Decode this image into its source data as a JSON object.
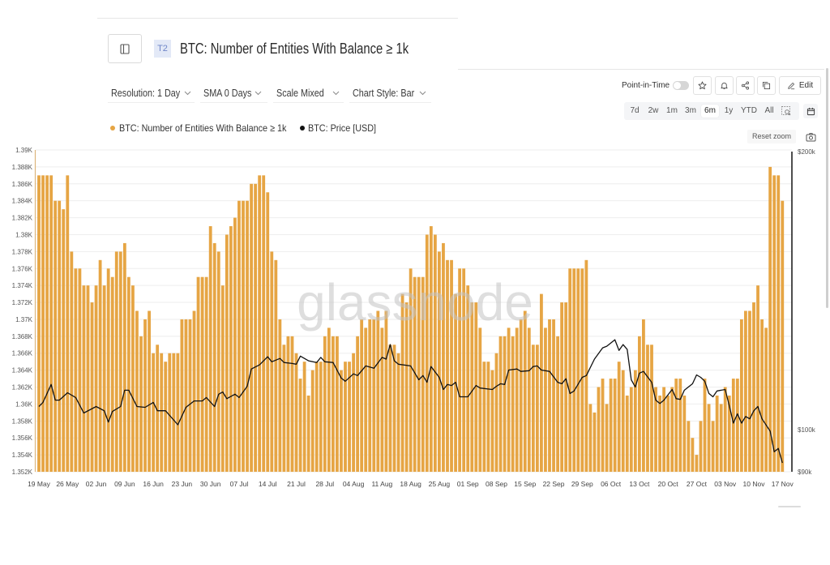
{
  "header": {
    "sidebar_toggle_icon": "panel-left-icon",
    "tier_badge": "T2",
    "title": "BTC: Number of Entities With Balance ≥ 1k"
  },
  "filters": [
    {
      "label": "Resolution: 1 Day",
      "icon": "chevron-down-icon"
    },
    {
      "label": "SMA 0 Days",
      "icon": "chevron-down-icon"
    },
    {
      "label": "Scale Mixed",
      "icon": "chevron-down-icon"
    },
    {
      "label": "Chart Style: Bar",
      "icon": "chevron-down-icon"
    }
  ],
  "legend": [
    {
      "label": "BTC: Number of Entities With Balance ≥ 1k",
      "color": "#E6A544"
    },
    {
      "label": "BTC: Price [USD]",
      "color": "#111111"
    }
  ],
  "toolbar": {
    "point_in_time_label": "Point-in-Time",
    "point_in_time_enabled": false,
    "icons": [
      "star-icon",
      "bell-icon",
      "share-icon",
      "copy-icon"
    ],
    "edit_label": "Edit",
    "edit_icon": "pencil-icon"
  },
  "time_ranges": {
    "options": [
      "7d",
      "2w",
      "1m",
      "3m",
      "6m",
      "1y",
      "YTD",
      "All"
    ],
    "selected": "6m",
    "extra_icons": [
      "zoom-select-icon",
      "calendar-icon"
    ]
  },
  "reset_zoom_label": "Reset zoom",
  "screenshot_icon": "camera-icon",
  "watermark": "glassnode",
  "chart_data": {
    "type": "bar",
    "title": "BTC: Number of Entities With Balance ≥ 1k",
    "xlabel": "",
    "ylabel": "",
    "x_start": "19 May",
    "x_interval": "1 Day",
    "x_ticks": [
      {
        "day": 0,
        "label": "19 May"
      },
      {
        "day": 7,
        "label": "26 May"
      },
      {
        "day": 14,
        "label": "02 Jun"
      },
      {
        "day": 21,
        "label": "09 Jun"
      },
      {
        "day": 28,
        "label": "16 Jun"
      },
      {
        "day": 35,
        "label": "23 Jun"
      },
      {
        "day": 42,
        "label": "30 Jun"
      },
      {
        "day": 49,
        "label": "07 Jul"
      },
      {
        "day": 56,
        "label": "14 Jul"
      },
      {
        "day": 63,
        "label": "21 Jul"
      },
      {
        "day": 70,
        "label": "28 Jul"
      },
      {
        "day": 77,
        "label": "04 Aug"
      },
      {
        "day": 84,
        "label": "11 Aug"
      },
      {
        "day": 91,
        "label": "18 Aug"
      },
      {
        "day": 98,
        "label": "25 Aug"
      },
      {
        "day": 105,
        "label": "01 Sep"
      },
      {
        "day": 112,
        "label": "08 Sep"
      },
      {
        "day": 119,
        "label": "15 Sep"
      },
      {
        "day": 126,
        "label": "22 Sep"
      },
      {
        "day": 133,
        "label": "29 Sep"
      },
      {
        "day": 140,
        "label": "06 Oct"
      },
      {
        "day": 147,
        "label": "13 Oct"
      },
      {
        "day": 154,
        "label": "20 Oct"
      },
      {
        "day": 161,
        "label": "27 Oct"
      },
      {
        "day": 168,
        "label": "03 Nov"
      },
      {
        "day": 175,
        "label": "10 Nov"
      },
      {
        "day": 182,
        "label": "17 Nov"
      }
    ],
    "ylim": [
      1352,
      1390
    ],
    "y_ticks": [
      {
        "value": 1390,
        "label": "1.39K"
      },
      {
        "value": 1388,
        "label": "1.388K"
      },
      {
        "value": 1386,
        "label": "1.386K"
      },
      {
        "value": 1384,
        "label": "1.384K"
      },
      {
        "value": 1382,
        "label": "1.382K"
      },
      {
        "value": 1380,
        "label": "1.38K"
      },
      {
        "value": 1378,
        "label": "1.378K"
      },
      {
        "value": 1376,
        "label": "1.376K"
      },
      {
        "value": 1374,
        "label": "1.374K"
      },
      {
        "value": 1372,
        "label": "1.372K"
      },
      {
        "value": 1370,
        "label": "1.37K"
      },
      {
        "value": 1368,
        "label": "1.368K"
      },
      {
        "value": 1366,
        "label": "1.366K"
      },
      {
        "value": 1364,
        "label": "1.364K"
      },
      {
        "value": 1362,
        "label": "1.362K"
      },
      {
        "value": 1360,
        "label": "1.36K"
      },
      {
        "value": 1358,
        "label": "1.358K"
      },
      {
        "value": 1356,
        "label": "1.356K"
      },
      {
        "value": 1354,
        "label": "1.354K"
      },
      {
        "value": 1352,
        "label": "1.352K"
      }
    ],
    "y2lim": [
      90000,
      200000
    ],
    "y2scale": "log",
    "y2_ticks": [
      {
        "value": 200000,
        "label": "$200k"
      },
      {
        "value": 100000,
        "label": "$100k"
      },
      {
        "value": 90000,
        "label": "$90k"
      }
    ],
    "grid": true,
    "legend_position": "top-left",
    "series": [
      {
        "name": "BTC: Number of Entities With Balance ≥ 1k",
        "type": "bar",
        "axis": "left",
        "color": "#E6A544",
        "values": [
          1387,
          1387,
          1387,
          1387,
          1384,
          1384,
          1383,
          1387,
          1378,
          1376,
          1376,
          1374,
          1374,
          1372,
          1374,
          1377,
          1374,
          1376,
          1375,
          1378,
          1378,
          1379,
          1375,
          1374,
          1371,
          1368,
          1370,
          1371,
          1366,
          1367,
          1366,
          1365,
          1366,
          1366,
          1366,
          1370,
          1370,
          1370,
          1371,
          1375,
          1375,
          1375,
          1381,
          1379,
          1378,
          1374,
          1380,
          1381,
          1382,
          1384,
          1384,
          1384,
          1386,
          1386,
          1387,
          1387,
          1385,
          1378,
          1377,
          1370,
          1367,
          1368,
          1368,
          1366,
          1363,
          1365,
          1361,
          1364,
          1365,
          1365,
          1368,
          1369,
          1368,
          1368,
          1364,
          1365,
          1365,
          1366,
          1368,
          1370,
          1369,
          1370,
          1370,
          1371,
          1369,
          1371,
          1367,
          1367,
          1366,
          1373,
          1372,
          1376,
          1375,
          1375,
          1375,
          1380,
          1381,
          1380,
          1378,
          1379,
          1377,
          1377,
          1373,
          1376,
          1376,
          1374,
          1372,
          1372,
          1369,
          1365,
          1365,
          1364,
          1366,
          1368,
          1368,
          1369,
          1368,
          1369,
          1370,
          1371,
          1369,
          1367,
          1367,
          1373,
          1369,
          1370,
          1370,
          1368,
          1372,
          1372,
          1376,
          1376,
          1376,
          1376,
          1377,
          1360,
          1359,
          1362,
          1363,
          1360,
          1363,
          1363,
          1365,
          1364,
          1361,
          1362,
          1364,
          1368,
          1370,
          1367,
          1367,
          1362,
          1361,
          1362,
          1361,
          1362,
          1363,
          1363,
          1361,
          1358,
          1356,
          1354,
          1358,
          1363,
          1360,
          1358,
          1361,
          1360,
          1362,
          1361,
          1363,
          1363,
          1370,
          1371,
          1371,
          1372,
          1374,
          1370,
          1369,
          1388,
          1387,
          1387,
          1384
        ]
      },
      {
        "name": "BTC: Price [USD]",
        "type": "line",
        "axis": "right",
        "color": "#111111",
        "points": [
          [
            0,
            105900
          ],
          [
            1,
            107000
          ],
          [
            3,
            111900
          ],
          [
            4,
            107600
          ],
          [
            5,
            107600
          ],
          [
            7,
            109600
          ],
          [
            9,
            108300
          ],
          [
            11,
            104200
          ],
          [
            14,
            105900
          ],
          [
            16,
            104800
          ],
          [
            17,
            101900
          ],
          [
            18,
            104600
          ],
          [
            20,
            105900
          ],
          [
            21,
            110300
          ],
          [
            22,
            110300
          ],
          [
            24,
            105900
          ],
          [
            26,
            105700
          ],
          [
            28,
            107000
          ],
          [
            29,
            104800
          ],
          [
            31,
            104800
          ],
          [
            34,
            101200
          ],
          [
            36,
            105700
          ],
          [
            38,
            107400
          ],
          [
            40,
            107400
          ],
          [
            41,
            108300
          ],
          [
            43,
            105900
          ],
          [
            44,
            109200
          ],
          [
            45,
            109800
          ],
          [
            46,
            108000
          ],
          [
            48,
            109200
          ],
          [
            49,
            108300
          ],
          [
            51,
            111400
          ],
          [
            52,
            116300
          ],
          [
            54,
            117500
          ],
          [
            56,
            119900
          ],
          [
            57,
            118400
          ],
          [
            59,
            119400
          ],
          [
            60,
            118200
          ],
          [
            62,
            117900
          ],
          [
            63,
            117700
          ],
          [
            64,
            120100
          ],
          [
            66,
            118700
          ],
          [
            68,
            118200
          ],
          [
            69,
            119700
          ],
          [
            70,
            118400
          ],
          [
            72,
            118200
          ],
          [
            74,
            113700
          ],
          [
            75,
            112800
          ],
          [
            77,
            114900
          ],
          [
            78,
            114400
          ],
          [
            80,
            117200
          ],
          [
            82,
            116500
          ],
          [
            84,
            119700
          ],
          [
            85,
            119200
          ],
          [
            86,
            123600
          ],
          [
            87,
            118700
          ],
          [
            88,
            117700
          ],
          [
            91,
            117200
          ],
          [
            93,
            113200
          ],
          [
            94,
            114400
          ],
          [
            95,
            112500
          ],
          [
            96,
            117000
          ],
          [
            98,
            113900
          ],
          [
            99,
            110500
          ],
          [
            100,
            111900
          ],
          [
            101,
            111600
          ],
          [
            102,
            112500
          ],
          [
            103,
            108500
          ],
          [
            105,
            108500
          ],
          [
            107,
            111600
          ],
          [
            108,
            110900
          ],
          [
            111,
            110500
          ],
          [
            112,
            111400
          ],
          [
            113,
            112100
          ],
          [
            114,
            111900
          ],
          [
            115,
            116000
          ],
          [
            117,
            116300
          ],
          [
            118,
            115600
          ],
          [
            120,
            115800
          ],
          [
            121,
            117000
          ],
          [
            122,
            117200
          ],
          [
            123,
            116000
          ],
          [
            125,
            115600
          ],
          [
            127,
            112500
          ],
          [
            128,
            112100
          ],
          [
            129,
            113500
          ],
          [
            130,
            109400
          ],
          [
            131,
            110100
          ],
          [
            133,
            113900
          ],
          [
            134,
            114400
          ],
          [
            136,
            119200
          ],
          [
            138,
            122600
          ],
          [
            139,
            123100
          ],
          [
            141,
            125100
          ],
          [
            142,
            121800
          ],
          [
            143,
            123600
          ],
          [
            144,
            122100
          ],
          [
            145,
            113200
          ],
          [
            146,
            111200
          ],
          [
            147,
            115100
          ],
          [
            148,
            115600
          ],
          [
            150,
            112500
          ],
          [
            151,
            107600
          ],
          [
            152,
            106700
          ],
          [
            153,
            107600
          ],
          [
            155,
            110500
          ],
          [
            156,
            108000
          ],
          [
            157,
            107800
          ],
          [
            158,
            110300
          ],
          [
            160,
            112100
          ],
          [
            161,
            114600
          ],
          [
            162,
            113900
          ],
          [
            163,
            112800
          ],
          [
            164,
            109400
          ],
          [
            165,
            108500
          ],
          [
            166,
            110100
          ],
          [
            168,
            110500
          ],
          [
            169,
            106100
          ],
          [
            170,
            101600
          ],
          [
            171,
            104000
          ],
          [
            172,
            101600
          ],
          [
            173,
            103300
          ],
          [
            174,
            102700
          ],
          [
            175,
            104800
          ],
          [
            176,
            105900
          ],
          [
            177,
            102700
          ],
          [
            179,
            99600
          ],
          [
            180,
            94600
          ],
          [
            181,
            95400
          ],
          [
            182,
            92000
          ]
        ]
      }
    ]
  }
}
